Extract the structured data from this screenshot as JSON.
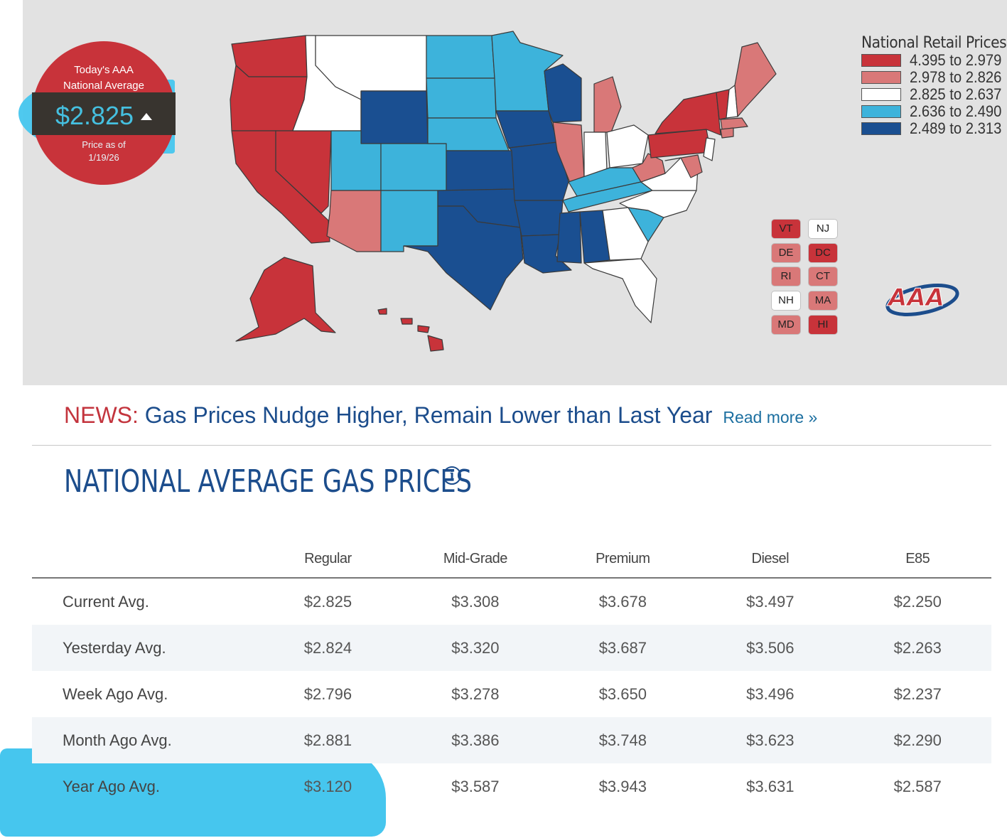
{
  "national_average": {
    "title_line1": "Today's AAA",
    "title_line2": "National Average",
    "price": "$2.825",
    "trend": "up",
    "asof_line1": "Price as of",
    "asof_line2": "1/19/26"
  },
  "legend": {
    "title": "National Retail Prices",
    "items": [
      {
        "label": "4.395 to 2.979",
        "color": "#c8333a"
      },
      {
        "label": "2.978 to 2.826",
        "color": "#d97878"
      },
      {
        "label": "2.825 to 2.637",
        "color": "#ffffff"
      },
      {
        "label": "2.636 to 2.490",
        "color": "#3db3db"
      },
      {
        "label": "2.489 to 2.313",
        "color": "#1a4f91"
      }
    ]
  },
  "state_badges": [
    {
      "code": "VT",
      "color": "#c8333a"
    },
    {
      "code": "NJ",
      "color": "#ffffff"
    },
    {
      "code": "DE",
      "color": "#d97878"
    },
    {
      "code": "DC",
      "color": "#c8333a"
    },
    {
      "code": "RI",
      "color": "#d97878"
    },
    {
      "code": "CT",
      "color": "#d97878"
    },
    {
      "code": "NH",
      "color": "#ffffff"
    },
    {
      "code": "MA",
      "color": "#d97878"
    },
    {
      "code": "MD",
      "color": "#d97878"
    },
    {
      "code": "HI",
      "color": "#c8333a"
    }
  ],
  "logo_text": "AAA",
  "news": {
    "prefix": "NEWS:",
    "headline": "Gas Prices Nudge Higher, Remain Lower than Last Year",
    "read_more": "Read more »"
  },
  "page_title": "NATIONAL AVERAGE GAS PRICES",
  "table": {
    "headers": [
      "Regular",
      "Mid-Grade",
      "Premium",
      "Diesel",
      "E85"
    ],
    "rows": [
      {
        "label": "Current Avg.",
        "values": [
          "$2.825",
          "$3.308",
          "$3.678",
          "$3.497",
          "$2.250"
        ]
      },
      {
        "label": "Yesterday Avg.",
        "values": [
          "$2.824",
          "$3.320",
          "$3.687",
          "$3.506",
          "$2.263"
        ]
      },
      {
        "label": "Week Ago Avg.",
        "values": [
          "$2.796",
          "$3.278",
          "$3.650",
          "$3.496",
          "$2.237"
        ]
      },
      {
        "label": "Month Ago Avg.",
        "values": [
          "$2.881",
          "$3.386",
          "$3.748",
          "$3.623",
          "$2.290"
        ]
      },
      {
        "label": "Year Ago Avg.",
        "values": [
          "$3.120",
          "$3.587",
          "$3.943",
          "$3.631",
          "$2.587"
        ]
      }
    ]
  }
}
